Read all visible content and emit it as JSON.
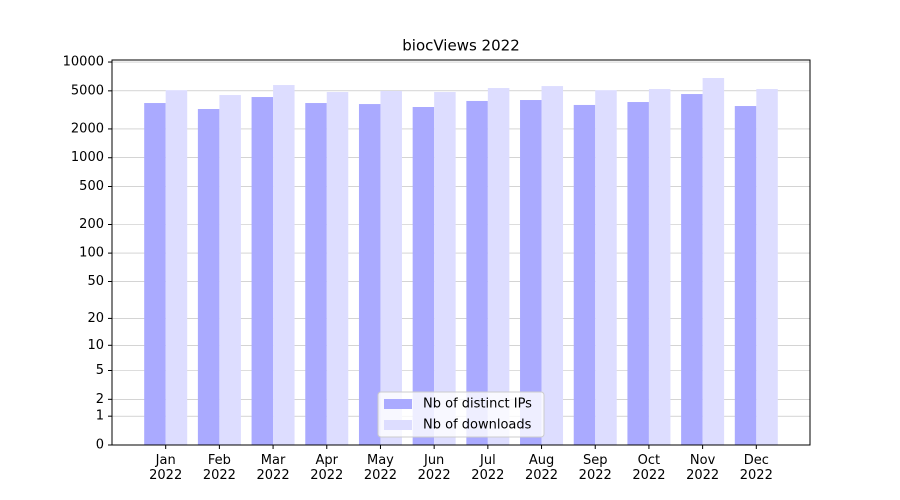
{
  "chart_data": {
    "type": "bar",
    "title": "biocViews 2022",
    "categories": [
      "Jan\n2022",
      "Feb\n2022",
      "Mar\n2022",
      "Apr\n2022",
      "May\n2022",
      "Jun\n2022",
      "Jul\n2022",
      "Aug\n2022",
      "Sep\n2022",
      "Oct\n2022",
      "Nov\n2022",
      "Dec\n2022"
    ],
    "series": [
      {
        "name": "Nb of distinct IPs",
        "color": "#aaaaff",
        "values": [
          3730,
          3230,
          4310,
          3730,
          3640,
          3390,
          3920,
          4010,
          3560,
          3820,
          4630,
          3470
        ]
      },
      {
        "name": "Nb of downloads",
        "color": "#ddddff",
        "values": [
          5080,
          4520,
          5750,
          4860,
          4980,
          4860,
          5350,
          5610,
          5080,
          5220,
          6810,
          5220
        ]
      }
    ],
    "yscale": "log1p",
    "ylim": [
      0,
      10500
    ],
    "yticks": [
      0,
      1,
      2,
      5,
      10,
      20,
      50,
      100,
      200,
      500,
      1000,
      2000,
      5000,
      10000
    ],
    "grid": true,
    "legend": "lower center"
  }
}
